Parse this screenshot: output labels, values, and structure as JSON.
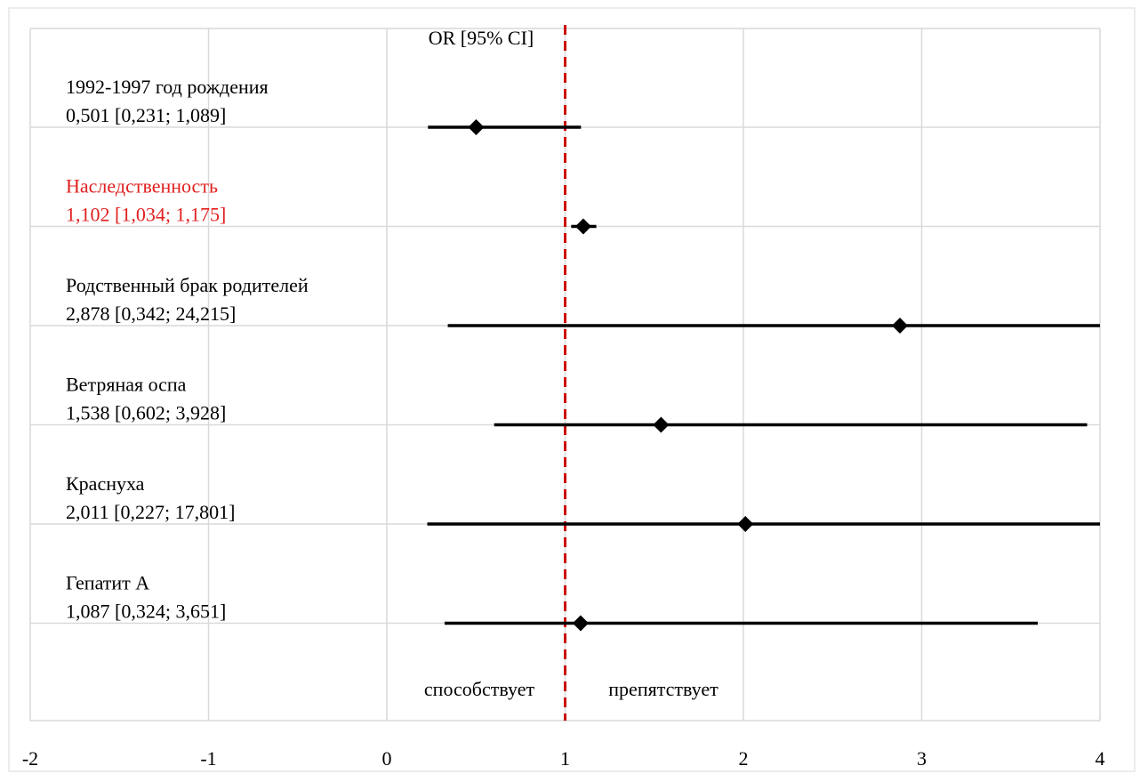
{
  "chart_data": {
    "type": "scatter",
    "title": "",
    "xlabel": "",
    "ylabel": "",
    "xlim": [
      -2,
      4
    ],
    "xticks": [
      "-2",
      "-1",
      "0",
      "1",
      "2",
      "3",
      "4"
    ],
    "xtick_values": [
      -2,
      -1,
      0,
      1,
      2,
      3,
      4
    ],
    "grid": true,
    "reference_line_x": 1,
    "header": "OR [95% CI]",
    "annotation_left": "способствует",
    "annotation_right": "препятствует",
    "rows": [
      {
        "name": "1992-1997 год рождения",
        "value_text": "0,501 [0,231; 1,089]",
        "or": 0.501,
        "ci_low": 0.231,
        "ci_high": 1.089,
        "highlight": false
      },
      {
        "name": "Наследственность",
        "value_text": "1,102 [1,034; 1,175]",
        "or": 1.102,
        "ci_low": 1.034,
        "ci_high": 1.175,
        "highlight": true
      },
      {
        "name": "Родственный брак родителей",
        "value_text": "2,878 [0,342; 24,215]",
        "or": 2.878,
        "ci_low": 0.342,
        "ci_high": 24.215,
        "highlight": false
      },
      {
        "name": "Ветряная оспа",
        "value_text": "1,538 [0,602; 3,928]",
        "or": 1.538,
        "ci_low": 0.602,
        "ci_high": 3.928,
        "highlight": false
      },
      {
        "name": "Краснуха",
        "value_text": "2,011 [0,227; 17,801]",
        "or": 2.011,
        "ci_low": 0.227,
        "ci_high": 17.801,
        "highlight": false
      },
      {
        "name": "Гепатит А",
        "value_text": "1,087 [0,324; 3,651]",
        "or": 1.087,
        "ci_low": 0.324,
        "ci_high": 3.651,
        "highlight": false
      }
    ],
    "colors": {
      "marker": "#000000",
      "reference_line": "#cc0000",
      "highlight_text": "#e02020",
      "grid": "#d9d9d9",
      "text": "#000000"
    }
  }
}
